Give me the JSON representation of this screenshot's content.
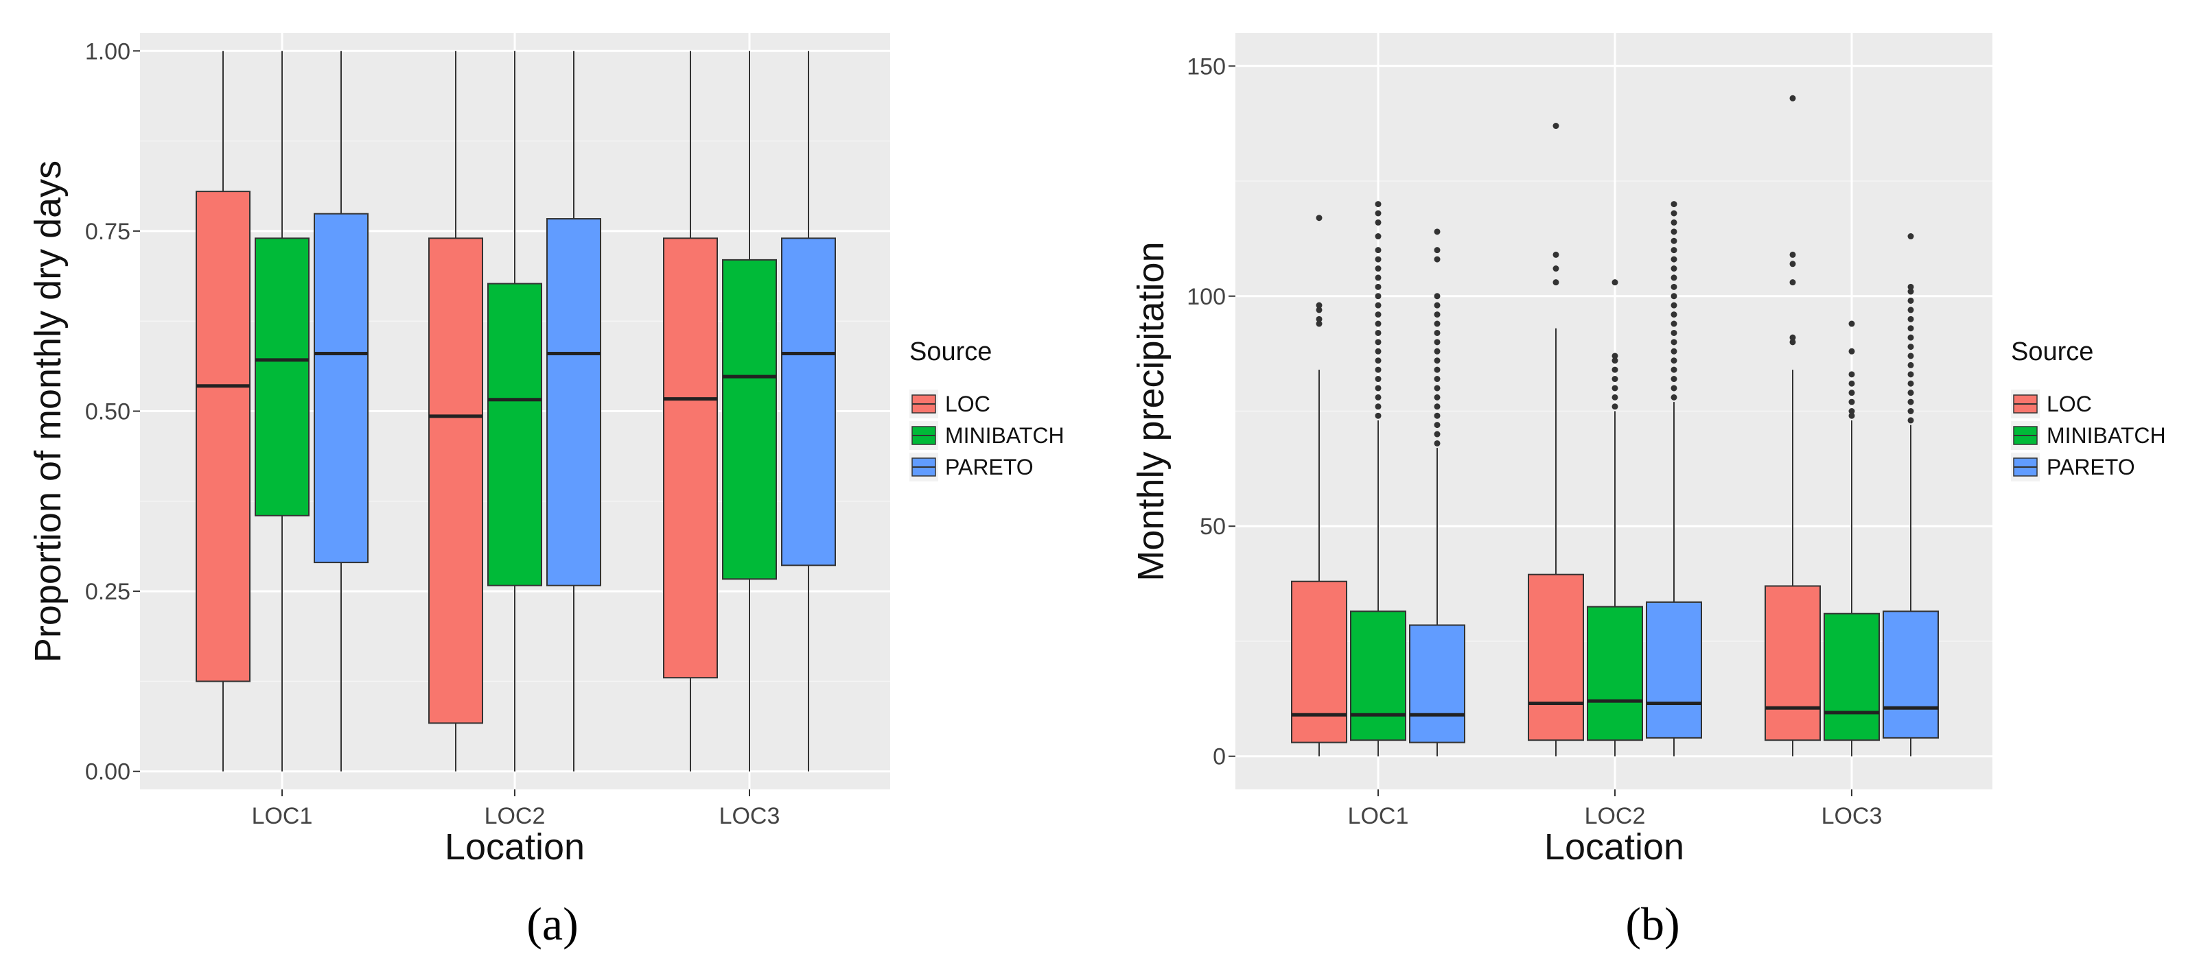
{
  "chart_data": [
    {
      "type": "boxplot",
      "panel_label": "(a)",
      "xlabel": "Location",
      "ylabel": "Proportion of monthly dry days",
      "ylim": [
        -0.025,
        1.025
      ],
      "y_ticks": [
        0.0,
        0.25,
        0.5,
        0.75,
        1.0
      ],
      "y_tick_labels": [
        "0.00",
        "0.25",
        "0.50",
        "0.75",
        "1.00"
      ],
      "categories": [
        "LOC1",
        "LOC2",
        "LOC3"
      ],
      "legend": {
        "title": "Source",
        "position": "right"
      },
      "series": [
        {
          "name": "LOC",
          "color": "#F8766D",
          "boxes": [
            {
              "min": 0.0,
              "q1": 0.125,
              "median": 0.535,
              "q3": 0.805,
              "max": 1.0,
              "outliers": []
            },
            {
              "min": 0.0,
              "q1": 0.067,
              "median": 0.493,
              "q3": 0.74,
              "max": 1.0,
              "outliers": []
            },
            {
              "min": 0.0,
              "q1": 0.13,
              "median": 0.517,
              "q3": 0.74,
              "max": 1.0,
              "outliers": []
            }
          ]
        },
        {
          "name": "MINIBATCH",
          "color": "#00BA38",
          "boxes": [
            {
              "min": 0.0,
              "q1": 0.355,
              "median": 0.571,
              "q3": 0.74,
              "max": 1.0,
              "outliers": []
            },
            {
              "min": 0.0,
              "q1": 0.258,
              "median": 0.516,
              "q3": 0.677,
              "max": 1.0,
              "outliers": []
            },
            {
              "min": 0.0,
              "q1": 0.267,
              "median": 0.548,
              "q3": 0.71,
              "max": 1.0,
              "outliers": []
            }
          ]
        },
        {
          "name": "PARETO",
          "color": "#619CFF",
          "boxes": [
            {
              "min": 0.0,
              "q1": 0.29,
              "median": 0.58,
              "q3": 0.774,
              "max": 1.0,
              "outliers": []
            },
            {
              "min": 0.0,
              "q1": 0.258,
              "median": 0.58,
              "q3": 0.767,
              "max": 1.0,
              "outliers": []
            },
            {
              "min": 0.0,
              "q1": 0.286,
              "median": 0.58,
              "q3": 0.74,
              "max": 1.0,
              "outliers": []
            }
          ]
        }
      ]
    },
    {
      "type": "boxplot",
      "panel_label": "(b)",
      "xlabel": "Location",
      "ylabel": "Monthly precipitation",
      "ylim": [
        -7.2,
        157.2
      ],
      "y_ticks": [
        0,
        50,
        100,
        150
      ],
      "y_tick_labels": [
        "0",
        "50",
        "100",
        "150"
      ],
      "categories": [
        "LOC1",
        "LOC2",
        "LOC3"
      ],
      "legend": {
        "title": "Source",
        "position": "right"
      },
      "series": [
        {
          "name": "LOC",
          "color": "#F8766D",
          "boxes": [
            {
              "min": 0.0,
              "q1": 3.0,
              "median": 9.0,
              "q3": 38.0,
              "max": 84.0,
              "outliers": [
                94,
                95,
                97,
                98,
                117
              ]
            },
            {
              "min": 0.0,
              "q1": 3.5,
              "median": 11.5,
              "q3": 39.5,
              "max": 93.0,
              "outliers": [
                103,
                106,
                109,
                137
              ]
            },
            {
              "min": 0.0,
              "q1": 3.5,
              "median": 10.5,
              "q3": 37.0,
              "max": 84.0,
              "outliers": [
                90,
                91,
                103,
                107,
                109,
                143
              ]
            }
          ]
        },
        {
          "name": "MINIBATCH",
          "color": "#00BA38",
          "boxes": [
            {
              "min": 0.0,
              "q1": 3.5,
              "median": 9.0,
              "q3": 31.5,
              "max": 73.0,
              "outliers": [
                74,
                76,
                78,
                80,
                82,
                84,
                86,
                88,
                90,
                92,
                94,
                96,
                98,
                100,
                102,
                104,
                106,
                108,
                110,
                113,
                116,
                118,
                120
              ]
            },
            {
              "min": 0.0,
              "q1": 3.5,
              "median": 12.0,
              "q3": 32.5,
              "max": 75.0,
              "outliers": [
                76,
                78,
                80,
                82,
                84,
                86,
                87,
                103
              ]
            },
            {
              "min": 0.0,
              "q1": 3.5,
              "median": 9.5,
              "q3": 31.0,
              "max": 73.0,
              "outliers": [
                74,
                75,
                77,
                79,
                81,
                83,
                88,
                94
              ]
            }
          ]
        },
        {
          "name": "PARETO",
          "color": "#619CFF",
          "boxes": [
            {
              "min": 0.0,
              "q1": 3.0,
              "median": 9.0,
              "q3": 28.5,
              "max": 67.0,
              "outliers": [
                68,
                70,
                72,
                74,
                76,
                78,
                80,
                82,
                84,
                86,
                88,
                90,
                92,
                94,
                96,
                98,
                100,
                108,
                110,
                114
              ]
            },
            {
              "min": 0.0,
              "q1": 4.0,
              "median": 11.5,
              "q3": 33.5,
              "max": 77.0,
              "outliers": [
                78,
                80,
                82,
                84,
                86,
                88,
                90,
                92,
                94,
                96,
                98,
                100,
                102,
                104,
                106,
                108,
                110,
                112,
                114,
                116,
                118,
                120
              ]
            },
            {
              "min": 0.0,
              "q1": 4.0,
              "median": 10.5,
              "q3": 31.5,
              "max": 72.0,
              "outliers": [
                73,
                75,
                77,
                79,
                81,
                83,
                85,
                87,
                89,
                91,
                93,
                95,
                97,
                99,
                101,
                102,
                113
              ]
            }
          ]
        }
      ]
    }
  ]
}
